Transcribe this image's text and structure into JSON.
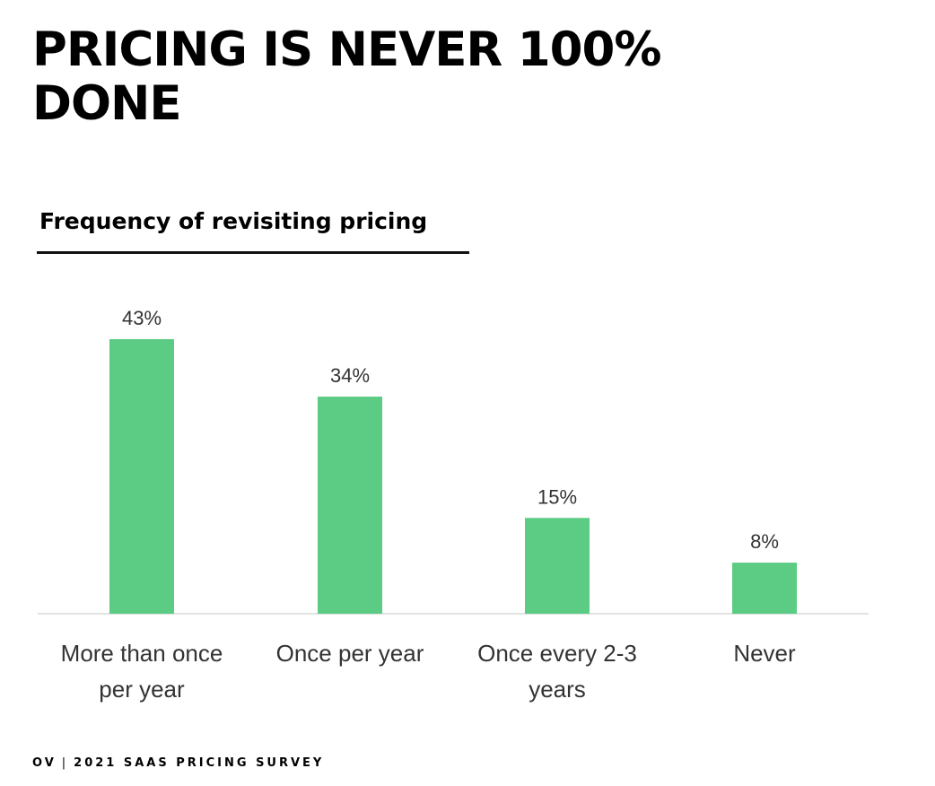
{
  "header": {
    "title_line1": "PRICING IS NEVER 100%",
    "title_line2": "DONE"
  },
  "footer": {
    "logo": "OV",
    "separator": "|",
    "text": "2021 SAAS PRICING SURVEY"
  },
  "colors": {
    "bar": "#5ccb84",
    "axis": "#e2e2e2",
    "text": "#000000",
    "label_text": "#333333"
  },
  "chart_data": {
    "type": "bar",
    "title": "Frequency of revisiting pricing",
    "categories": [
      [
        "More than once",
        "per year"
      ],
      [
        "Once per year"
      ],
      [
        "Once every 2-3",
        "years"
      ],
      [
        "Never"
      ]
    ],
    "values": [
      43,
      34,
      15,
      8
    ],
    "value_labels": [
      "43%",
      "34%",
      "15%",
      "8%"
    ],
    "unit": "%",
    "ylim": [
      0,
      43
    ],
    "xlabel": "",
    "ylabel": "",
    "grid": false,
    "legend": "none"
  }
}
